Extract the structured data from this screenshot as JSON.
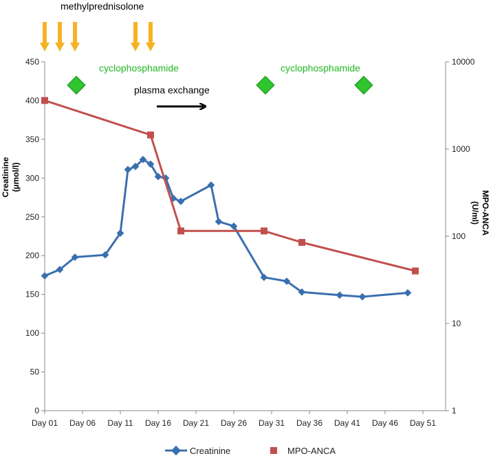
{
  "chart_data": {
    "type": "line",
    "title": "",
    "x_ticks": [
      "Day 01",
      "Day 06",
      "Day 11",
      "Day 16",
      "Day 21",
      "Day 26",
      "Day 31",
      "Day 36",
      "Day 41",
      "Day 46",
      "Day 51"
    ],
    "xlim": [
      1,
      54
    ],
    "y_left": {
      "label_line1": "Creatinine",
      "label_line2": "(µmol/l)",
      "ticks": [
        0,
        50,
        100,
        150,
        200,
        250,
        300,
        350,
        400,
        450
      ],
      "ylim": [
        0,
        450
      ]
    },
    "y_right": {
      "label_line1": "MPO-ANCA",
      "label_line2": "(U/ml)",
      "scale": "log",
      "ticks": [
        "1",
        "10",
        "100",
        "1000",
        "10000"
      ],
      "ylim": [
        1,
        10000
      ]
    },
    "series": [
      {
        "name": "Creatinine",
        "axis": "left",
        "color": "#3a6faf",
        "marker": "diamond",
        "x": [
          1,
          3,
          5,
          9,
          11,
          12,
          13,
          14,
          15,
          16,
          17,
          18,
          19,
          23,
          24,
          26,
          30,
          33,
          35,
          40,
          43,
          49
        ],
        "y": [
          174,
          182,
          198,
          201,
          229,
          311,
          315,
          324,
          318,
          302,
          300,
          274,
          270,
          291,
          244,
          238,
          172,
          167,
          153,
          149,
          147,
          152
        ]
      },
      {
        "name": "MPO-ANCA",
        "axis": "right",
        "color": "#c0504d",
        "marker": "square",
        "x": [
          1,
          15,
          19,
          30,
          35,
          50
        ],
        "y": [
          3600,
          1450,
          115,
          115,
          85,
          40
        ]
      }
    ],
    "annotations": {
      "methylprednisolone": {
        "label": "methylprednisolone",
        "days": [
          1,
          3,
          5,
          13,
          15
        ],
        "color": "#f5b324"
      },
      "cyclophosphamide": {
        "label": "cyclophosphamide",
        "days": [
          5,
          30,
          43
        ],
        "color": "#2ec52e"
      },
      "plasma_exchange": {
        "label": "plasma exchange"
      }
    },
    "legend": {
      "position": "bottom",
      "items": [
        "Creatinine",
        "MPO-ANCA"
      ]
    },
    "grid": false
  }
}
